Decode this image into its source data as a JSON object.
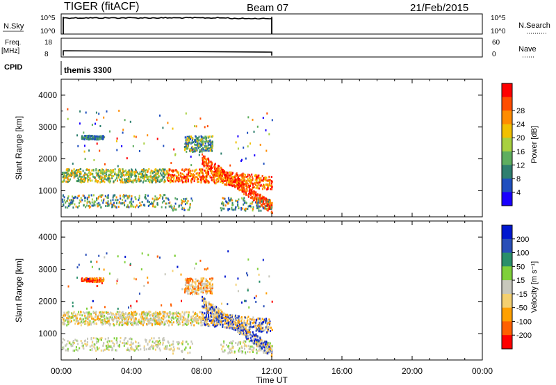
{
  "header": {
    "radar": "TIGER (fitACF)",
    "beam": "Beam 07",
    "date": "21/Feb/2015"
  },
  "strip": {
    "nsky_label": "N.Sky",
    "nsky_ticks": [
      "10^5",
      "10^0"
    ],
    "nsearch_label": "N.Search",
    "nsearch_ticks": [
      "10^5",
      "10^0"
    ],
    "freq_label": "Freq.",
    "freq_unit": "[MHz]",
    "freq_ticks": [
      "18",
      "8"
    ],
    "nave_label": "Nave",
    "nave_ticks": [
      "60",
      "0"
    ],
    "cpid_label": "CPID",
    "cpid_value": "themis 3300"
  },
  "chart_data": [
    {
      "type": "heatmap",
      "name": "power-panel",
      "ylabel": "Slant Range [km]",
      "xlabel": "Time UT",
      "x_ticks": [
        "00:00",
        "04:00",
        "08:00",
        "12:00",
        "16:00",
        "20:00",
        "00:00"
      ],
      "xlim_hours": [
        0,
        24
      ],
      "y_ticks": [
        "1000",
        "2000",
        "3000",
        "4000"
      ],
      "ylim_km": [
        180,
        4500
      ],
      "colorbar_label": "Power [dB]",
      "colorbar_ticks": [
        "4",
        "8",
        "12",
        "16",
        "20",
        "24",
        "28"
      ],
      "colorbar_colors": [
        "#1a00ff",
        "#1f4fbf",
        "#2f7f6f",
        "#5fae5f",
        "#a8d040",
        "#f2c000",
        "#ff8c00",
        "#ff4d00",
        "#ff0000"
      ],
      "data_extent_hours": [
        0,
        12
      ]
    },
    {
      "type": "heatmap",
      "name": "velocity-panel",
      "ylabel": "Slant Range [km]",
      "xlabel": "Time UT",
      "x_ticks": [
        "00:00",
        "04:00",
        "08:00",
        "12:00",
        "16:00",
        "20:00",
        "00:00"
      ],
      "xlim_hours": [
        0,
        24
      ],
      "y_ticks": [
        "1000",
        "2000",
        "3000",
        "4000"
      ],
      "ylim_km": [
        180,
        4500
      ],
      "colorbar_label": "Velocity [m s⁻¹]",
      "colorbar_ticks": [
        "200",
        "100",
        "50",
        "15",
        "-15",
        "-50",
        "-100",
        "-200"
      ],
      "colorbar_colors": [
        "#0018d0",
        "#2a4fb8",
        "#2a8f6a",
        "#7fd03a",
        "#c8c8bc",
        "#f4d070",
        "#ffa000",
        "#ff6000",
        "#ff0000"
      ],
      "data_extent_hours": [
        0,
        12
      ]
    }
  ]
}
